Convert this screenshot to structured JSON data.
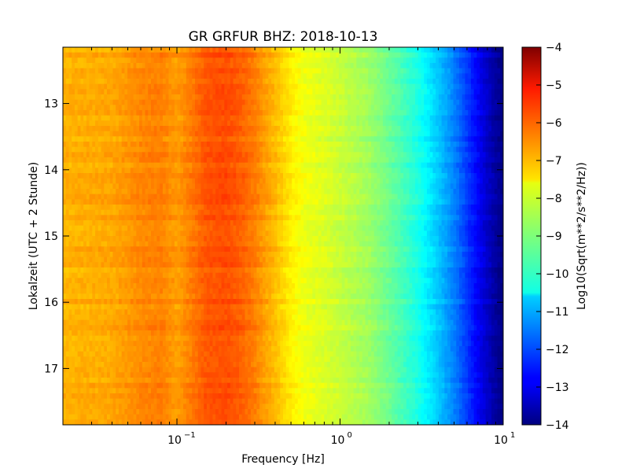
{
  "chart_data": {
    "type": "heatmap",
    "title": "GR GRFUR BHZ: 2018-10-13",
    "xlabel": "Frequency [Hz]",
    "ylabel": "Lokalzeit (UTC + 2 Stunde)",
    "x_scale": "log",
    "xlim": [
      0.02,
      10
    ],
    "x_ticks": [
      {
        "value": 0.1,
        "label": "10",
        "exp": "−1"
      },
      {
        "value": 1,
        "label": "10",
        "exp": "0"
      },
      {
        "value": 10,
        "label": "10",
        "exp": "1"
      }
    ],
    "ylim": [
      12.15,
      17.85
    ],
    "y_inverted": true,
    "y_ticks": [
      {
        "value": 13,
        "label": "13"
      },
      {
        "value": 14,
        "label": "14"
      },
      {
        "value": 15,
        "label": "15"
      },
      {
        "value": 16,
        "label": "16"
      },
      {
        "value": 17,
        "label": "17"
      }
    ],
    "colorbar": {
      "label": "Log10(Sqrt(m**2/s**2/Hz))",
      "range": [
        -14,
        -4
      ],
      "colormap": "jet",
      "ticks": [
        {
          "value": -4,
          "label": "−4"
        },
        {
          "value": -5,
          "label": "−5"
        },
        {
          "value": -6,
          "label": "−6"
        },
        {
          "value": -7,
          "label": "−7"
        },
        {
          "value": -8,
          "label": "−8"
        },
        {
          "value": -9,
          "label": "−9"
        },
        {
          "value": -10,
          "label": "−10"
        },
        {
          "value": -11,
          "label": "−11"
        },
        {
          "value": -12,
          "label": "−12"
        },
        {
          "value": -13,
          "label": "−13"
        },
        {
          "value": -14,
          "label": "−14"
        }
      ]
    },
    "spectrum_profile": {
      "frequencies": [
        0.02,
        0.04,
        0.06,
        0.08,
        0.1,
        0.12,
        0.15,
        0.2,
        0.25,
        0.3,
        0.4,
        0.5,
        0.6,
        0.8,
        1.0,
        1.5,
        2.0,
        3.0,
        4.0,
        5.0,
        6.0,
        7.0,
        8.0,
        9.0,
        10.0
      ],
      "values": [
        -7.0,
        -6.9,
        -6.6,
        -6.5,
        -6.8,
        -6.5,
        -6.1,
        -6.0,
        -6.2,
        -6.5,
        -7.1,
        -7.6,
        -7.9,
        -8.1,
        -8.3,
        -8.7,
        -9.2,
        -10.0,
        -10.8,
        -11.5,
        -12.2,
        -12.8,
        -13.3,
        -13.7,
        -14.0
      ]
    }
  }
}
